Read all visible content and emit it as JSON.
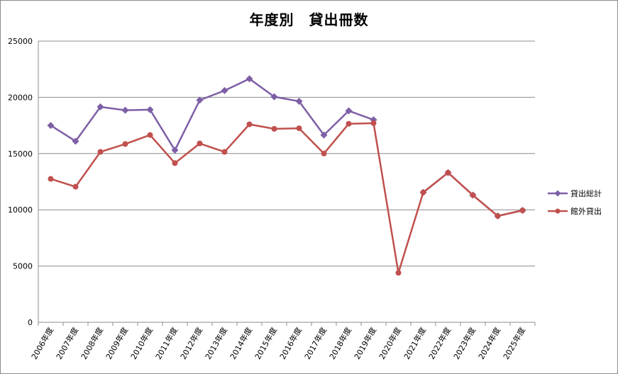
{
  "chart_data": {
    "type": "line",
    "title": "年度別　貸出冊数",
    "xlabel": "",
    "ylabel": "",
    "ylim": [
      0,
      25000
    ],
    "yticks": [
      0,
      5000,
      10000,
      15000,
      20000,
      25000
    ],
    "grid": true,
    "legend_position": "right",
    "categories": [
      "2006年度",
      "2007年度",
      "2008年度",
      "2009年度",
      "2010年度",
      "2011年度",
      "2012年度",
      "2013年度",
      "2014年度",
      "2015年度",
      "2016年度",
      "2017年度",
      "2018年度",
      "2019年度",
      "2020年度",
      "2021年度",
      "2022年度",
      "2023年度",
      "2024年度",
      "2025年度"
    ],
    "series": [
      {
        "name": "貸出総計",
        "color": "#7d5fa6",
        "marker": "diamond",
        "values": [
          17500,
          16100,
          19150,
          18850,
          18900,
          15300,
          19750,
          20600,
          21650,
          20050,
          19650,
          16650,
          18800,
          18000,
          null,
          11550,
          13300,
          11300,
          9450,
          9950
        ]
      },
      {
        "name": "館外貸出",
        "color": "#c0504d",
        "marker": "circle",
        "values": [
          12750,
          12050,
          15150,
          15850,
          16650,
          14150,
          15900,
          15150,
          17600,
          17200,
          17250,
          15000,
          17650,
          17700,
          4400,
          11550,
          13300,
          11300,
          9450,
          9950
        ]
      }
    ]
  }
}
